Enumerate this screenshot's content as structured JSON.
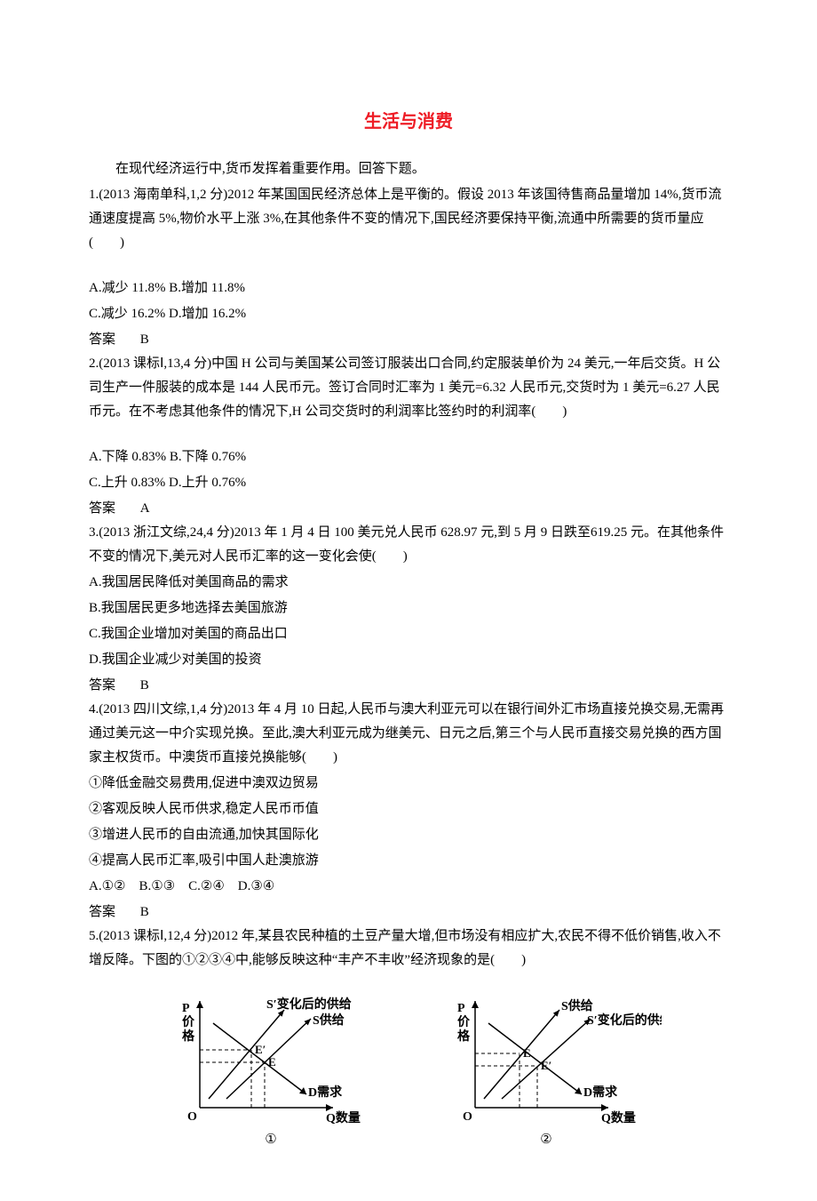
{
  "title": "生活与消费",
  "intro": "在现代经济运行中,货币发挥着重要作用。回答下题。",
  "q1": {
    "stem": "1.(2013 海南单科,1,2 分)2012 年某国国民经济总体上是平衡的。假设 2013 年该国待售商品量增加 14%,货币流通速度提高 5%,物价水平上涨 3%,在其他条件不变的情况下,国民经济要保持平衡,流通中所需要的货币量应(　　)",
    "opts": "A.减少 11.8% B.增加 11.8%",
    "opts2": "C.减少 16.2% D.增加 16.2%",
    "ans_label": "答案",
    "ans": "B"
  },
  "q2": {
    "stem": "2.(2013 课标Ⅰ,13,4 分)中国 H 公司与美国某公司签订服装出口合同,约定服装单价为 24 美元,一年后交货。H 公司生产一件服装的成本是 144 人民币元。签订合同时汇率为 1 美元=6.32 人民币元,交货时为 1 美元=6.27 人民币元。在不考虑其他条件的情况下,H 公司交货时的利润率比签约时的利润率(　　)",
    "opts": "A.下降 0.83% B.下降 0.76%",
    "opts2": "C.上升 0.83% D.上升 0.76%",
    "ans_label": "答案",
    "ans": "A"
  },
  "q3": {
    "stem": "3.(2013 浙江文综,24,4 分)2013 年 1 月 4 日 100 美元兑人民币 628.97 元,到 5 月 9 日跌至619.25 元。在其他条件不变的情况下,美元对人民币汇率的这一变化会使(　　)",
    "a": "A.我国居民降低对美国商品的需求",
    "b": "B.我国居民更多地选择去美国旅游",
    "c": "C.我国企业增加对美国的商品出口",
    "d": "D.我国企业减少对美国的投资",
    "ans_label": "答案",
    "ans": "B"
  },
  "q4": {
    "stem": "4.(2013 四川文综,1,4 分)2013 年 4 月 10 日起,人民币与澳大利亚元可以在银行间外汇市场直接兑换交易,无需再通过美元这一中介实现兑换。至此,澳大利亚元成为继美元、日元之后,第三个与人民币直接交易兑换的西方国家主权货币。中澳货币直接兑换能够(　　)",
    "s1": "①降低金融交易费用,促进中澳双边贸易",
    "s2": "②客观反映人民币供求,稳定人民币币值",
    "s3": "③增进人民币的自由流通,加快其国际化",
    "s4": "④提高人民币汇率,吸引中国人赴澳旅游",
    "opts": "A.①②　B.①③　C.②④　D.③④",
    "ans_label": "答案",
    "ans": "B"
  },
  "q5": {
    "stem": "5.(2013 课标Ⅰ,12,4 分)2012 年,某县农民种植的土豆产量大增,但市场没有相应扩大,农民不得不低价销售,收入不增反降。下图的①②③④中,能够反映这种“丰产不丰收”经济现象的是(　　)"
  },
  "chart": {
    "axis_color": "#000000",
    "line_color": "#000000",
    "dash_color": "#000000",
    "y_label": "P\n价\n格",
    "x_label": "Q数量",
    "origin": "O",
    "s_label": "S供给",
    "sprime_label": "S′变化后的供给",
    "d_label": "D需求",
    "e_label": "E",
    "eprime_label": "E′",
    "num1": "①",
    "num2": "②",
    "font": "14px SimSun"
  }
}
